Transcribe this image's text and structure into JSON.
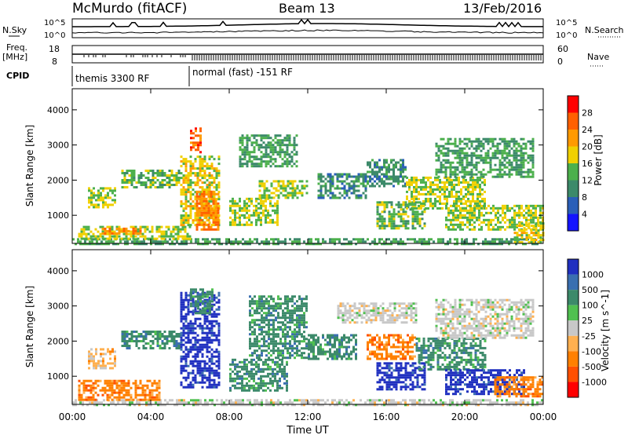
{
  "header": {
    "station": "McMurdo (fitACF)",
    "beam": "Beam 13",
    "date": "13/Feb/2016"
  },
  "status_panels": {
    "nsky_label": "N.Sky",
    "nsearch_label": "N.Search",
    "noise_ticks": [
      "10^5",
      "10^0"
    ],
    "freq_label_1": "Freq.",
    "freq_label_2": "[MHz]",
    "freq_ticks": [
      "18",
      "8"
    ],
    "nave_label": "Nave",
    "nave_ticks": [
      "60",
      "0"
    ],
    "cpid_label": "CPID",
    "cpid_segments": [
      {
        "label": "themis 3300 RF",
        "start_hour": 0.0,
        "end_hour": 6.1
      },
      {
        "label": "normal (fast) -151 RF",
        "start_hour": 6.1,
        "end_hour": 24.0
      }
    ]
  },
  "time_axis": {
    "label": "Time UT",
    "ticks": [
      "00:00",
      "04:00",
      "08:00",
      "12:00",
      "16:00",
      "20:00",
      "00:00"
    ]
  },
  "colors": {
    "power": [
      "#1414ff",
      "#2a5fb8",
      "#3c8a6a",
      "#4cb04c",
      "#f0d000",
      "#ff9a00",
      "#ff6000",
      "#ff0000"
    ],
    "velocity": [
      "#2030c0",
      "#3a6fb0",
      "#3c8a6a",
      "#50c050",
      "#c8c8c8",
      "#ffb050",
      "#ff8000",
      "#ff5000",
      "#ff0000"
    ]
  },
  "chart_data": [
    {
      "type": "heatmap",
      "title": "",
      "xlabel": "Time UT",
      "ylabel": "Slant Range [km]",
      "xlim": [
        0,
        24
      ],
      "ylim": [
        200,
        4600
      ],
      "yticks": [
        "1000",
        "2000",
        "3000",
        "4000"
      ],
      "colorbar_label": "Power [dB]",
      "colorbar_ticks": [
        "4",
        "8",
        "12",
        "16",
        "20",
        "24",
        "28"
      ],
      "colorbar_range": [
        0,
        32
      ],
      "regions": [
        {
          "t": [
            0.0,
            24.0
          ],
          "r": [
            200,
            350
          ],
          "level": 12
        },
        {
          "t": [
            0.3,
            6.0
          ],
          "r": [
            350,
            700
          ],
          "level": 16
        },
        {
          "t": [
            1.5,
            3.5
          ],
          "r": [
            450,
            650
          ],
          "level": 24
        },
        {
          "t": [
            2.5,
            5.5
          ],
          "r": [
            1800,
            2300
          ],
          "level": 14
        },
        {
          "t": [
            0.8,
            2.2
          ],
          "r": [
            1200,
            1800
          ],
          "level": 16
        },
        {
          "t": [
            5.5,
            7.5
          ],
          "r": [
            700,
            2700
          ],
          "level": 18
        },
        {
          "t": [
            6.0,
            6.6
          ],
          "r": [
            2800,
            3500
          ],
          "level": 26
        },
        {
          "t": [
            6.3,
            7.5
          ],
          "r": [
            600,
            1700
          ],
          "level": 24
        },
        {
          "t": [
            8.0,
            10.5
          ],
          "r": [
            700,
            1500
          ],
          "level": 16
        },
        {
          "t": [
            8.5,
            11.5
          ],
          "r": [
            2400,
            3300
          ],
          "level": 12
        },
        {
          "t": [
            9.5,
            12.0
          ],
          "r": [
            1500,
            2000
          ],
          "level": 16
        },
        {
          "t": [
            12.5,
            15.0
          ],
          "r": [
            1500,
            2200
          ],
          "level": 10
        },
        {
          "t": [
            15.0,
            17.0
          ],
          "r": [
            1800,
            2600
          ],
          "level": 10
        },
        {
          "t": [
            15.5,
            18.0
          ],
          "r": [
            600,
            1400
          ],
          "level": 14
        },
        {
          "t": [
            17.0,
            21.0
          ],
          "r": [
            1200,
            2100
          ],
          "level": 16
        },
        {
          "t": [
            18.5,
            23.5
          ],
          "r": [
            2100,
            3200
          ],
          "level": 12
        },
        {
          "t": [
            19.0,
            24.0
          ],
          "r": [
            600,
            1300
          ],
          "level": 16
        },
        {
          "t": [
            22.5,
            24.0
          ],
          "r": [
            200,
            800
          ],
          "level": 18
        }
      ]
    },
    {
      "type": "heatmap",
      "title": "",
      "xlabel": "Time UT",
      "ylabel": "Slant Range [km]",
      "xlim": [
        0,
        24
      ],
      "ylim": [
        200,
        4600
      ],
      "yticks": [
        "1000",
        "2000",
        "3000",
        "4000"
      ],
      "colorbar_label": "Velocity [m s^-1]",
      "colorbar_ticks": [
        "1000",
        "500",
        "100",
        "25",
        "-25",
        "-100",
        "-500",
        "-1000"
      ],
      "regions": [
        {
          "t": [
            0.0,
            24.0
          ],
          "r": [
            200,
            350
          ],
          "level": "-25..25"
        },
        {
          "t": [
            0.3,
            4.5
          ],
          "r": [
            350,
            900
          ],
          "level": "-500..-100"
        },
        {
          "t": [
            0.8,
            2.2
          ],
          "r": [
            1200,
            1800
          ],
          "level": "-100..-25"
        },
        {
          "t": [
            2.5,
            5.5
          ],
          "r": [
            1800,
            2300
          ],
          "level": "100..500"
        },
        {
          "t": [
            5.5,
            7.5
          ],
          "r": [
            700,
            3400
          ],
          "level": "500..1000"
        },
        {
          "t": [
            6.0,
            7.2
          ],
          "r": [
            2800,
            3500
          ],
          "level": "100..500"
        },
        {
          "t": [
            8.0,
            11.0
          ],
          "r": [
            600,
            1500
          ],
          "level": "100..500"
        },
        {
          "t": [
            9.0,
            12.0
          ],
          "r": [
            1500,
            3300
          ],
          "level": "100..500"
        },
        {
          "t": [
            12.0,
            14.5
          ],
          "r": [
            1500,
            2200
          ],
          "level": "100..500"
        },
        {
          "t": [
            13.5,
            17.5
          ],
          "r": [
            2500,
            3100
          ],
          "level": "-25..25"
        },
        {
          "t": [
            15.0,
            17.5
          ],
          "r": [
            1500,
            2200
          ],
          "level": "-500..-100"
        },
        {
          "t": [
            15.5,
            18.0
          ],
          "r": [
            600,
            1400
          ],
          "level": "500..1000"
        },
        {
          "t": [
            17.5,
            21.0
          ],
          "r": [
            1200,
            2100
          ],
          "level": "100..500"
        },
        {
          "t": [
            18.5,
            23.5
          ],
          "r": [
            2100,
            3200
          ],
          "level": "-25..25"
        },
        {
          "t": [
            19.0,
            23.0
          ],
          "r": [
            500,
            1200
          ],
          "level": "500..1000"
        },
        {
          "t": [
            21.5,
            24.0
          ],
          "r": [
            400,
            1000
          ],
          "level": "-500..-100"
        }
      ]
    }
  ]
}
